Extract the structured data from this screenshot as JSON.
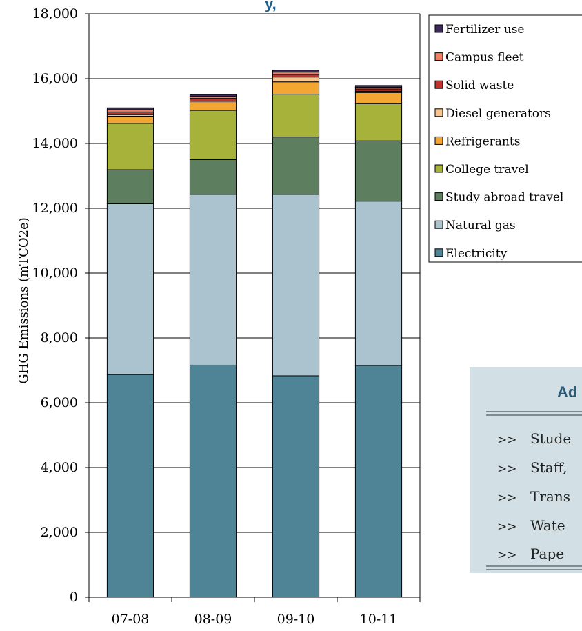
{
  "chart_data": {
    "type": "bar",
    "stacked": true,
    "title": "y,",
    "ylabel": "GHG Emissions (mTCO2e)",
    "ylim": [
      0,
      18000
    ],
    "yticks": [
      0,
      2000,
      4000,
      6000,
      8000,
      10000,
      12000,
      14000,
      16000,
      18000
    ],
    "ytick_labels": [
      "0",
      "2,000",
      "4,000",
      "6,000",
      "8,000",
      "10,000",
      "12,000",
      "14,000",
      "16,000",
      "18,000"
    ],
    "categories": [
      "07-08",
      "08-09",
      "09-10",
      "10-11"
    ],
    "grid": true,
    "legend_position": "top-right",
    "series": [
      {
        "name": "Electricity",
        "color": "#4e8496",
        "values": [
          6870,
          7160,
          6830,
          7150
        ]
      },
      {
        "name": "Natural gas",
        "color": "#abc3cf",
        "values": [
          5270,
          5270,
          5600,
          5070
        ]
      },
      {
        "name": "Study abroad  travel",
        "color": "#5e7f5f",
        "values": [
          1050,
          1070,
          1770,
          1860
        ]
      },
      {
        "name": "College travel",
        "color": "#a6b23a",
        "values": [
          1430,
          1520,
          1320,
          1150
        ]
      },
      {
        "name": "Refrigerants",
        "color": "#f3a632",
        "values": [
          220,
          230,
          380,
          340
        ]
      },
      {
        "name": "Diesel generators",
        "color": "#f9c58c",
        "values": [
          50,
          50,
          150,
          40
        ]
      },
      {
        "name": "Solid waste",
        "color": "#c0332d",
        "values": [
          80,
          90,
          80,
          70
        ]
      },
      {
        "name": "Campus fleet",
        "color": "#f07f63",
        "values": [
          70,
          60,
          70,
          50
        ]
      },
      {
        "name": "Fertilizer use",
        "color": "#3d2a5c",
        "values": [
          60,
          60,
          60,
          60
        ]
      }
    ]
  },
  "panel": {
    "heading": "Ad",
    "items": [
      {
        "marker": ">>",
        "text": "Stude"
      },
      {
        "marker": ">>",
        "text": "Staff,"
      },
      {
        "marker": ">>",
        "text": "Trans"
      },
      {
        "marker": ">>",
        "text": "Wate"
      },
      {
        "marker": ">>",
        "text": "Pape"
      }
    ]
  }
}
